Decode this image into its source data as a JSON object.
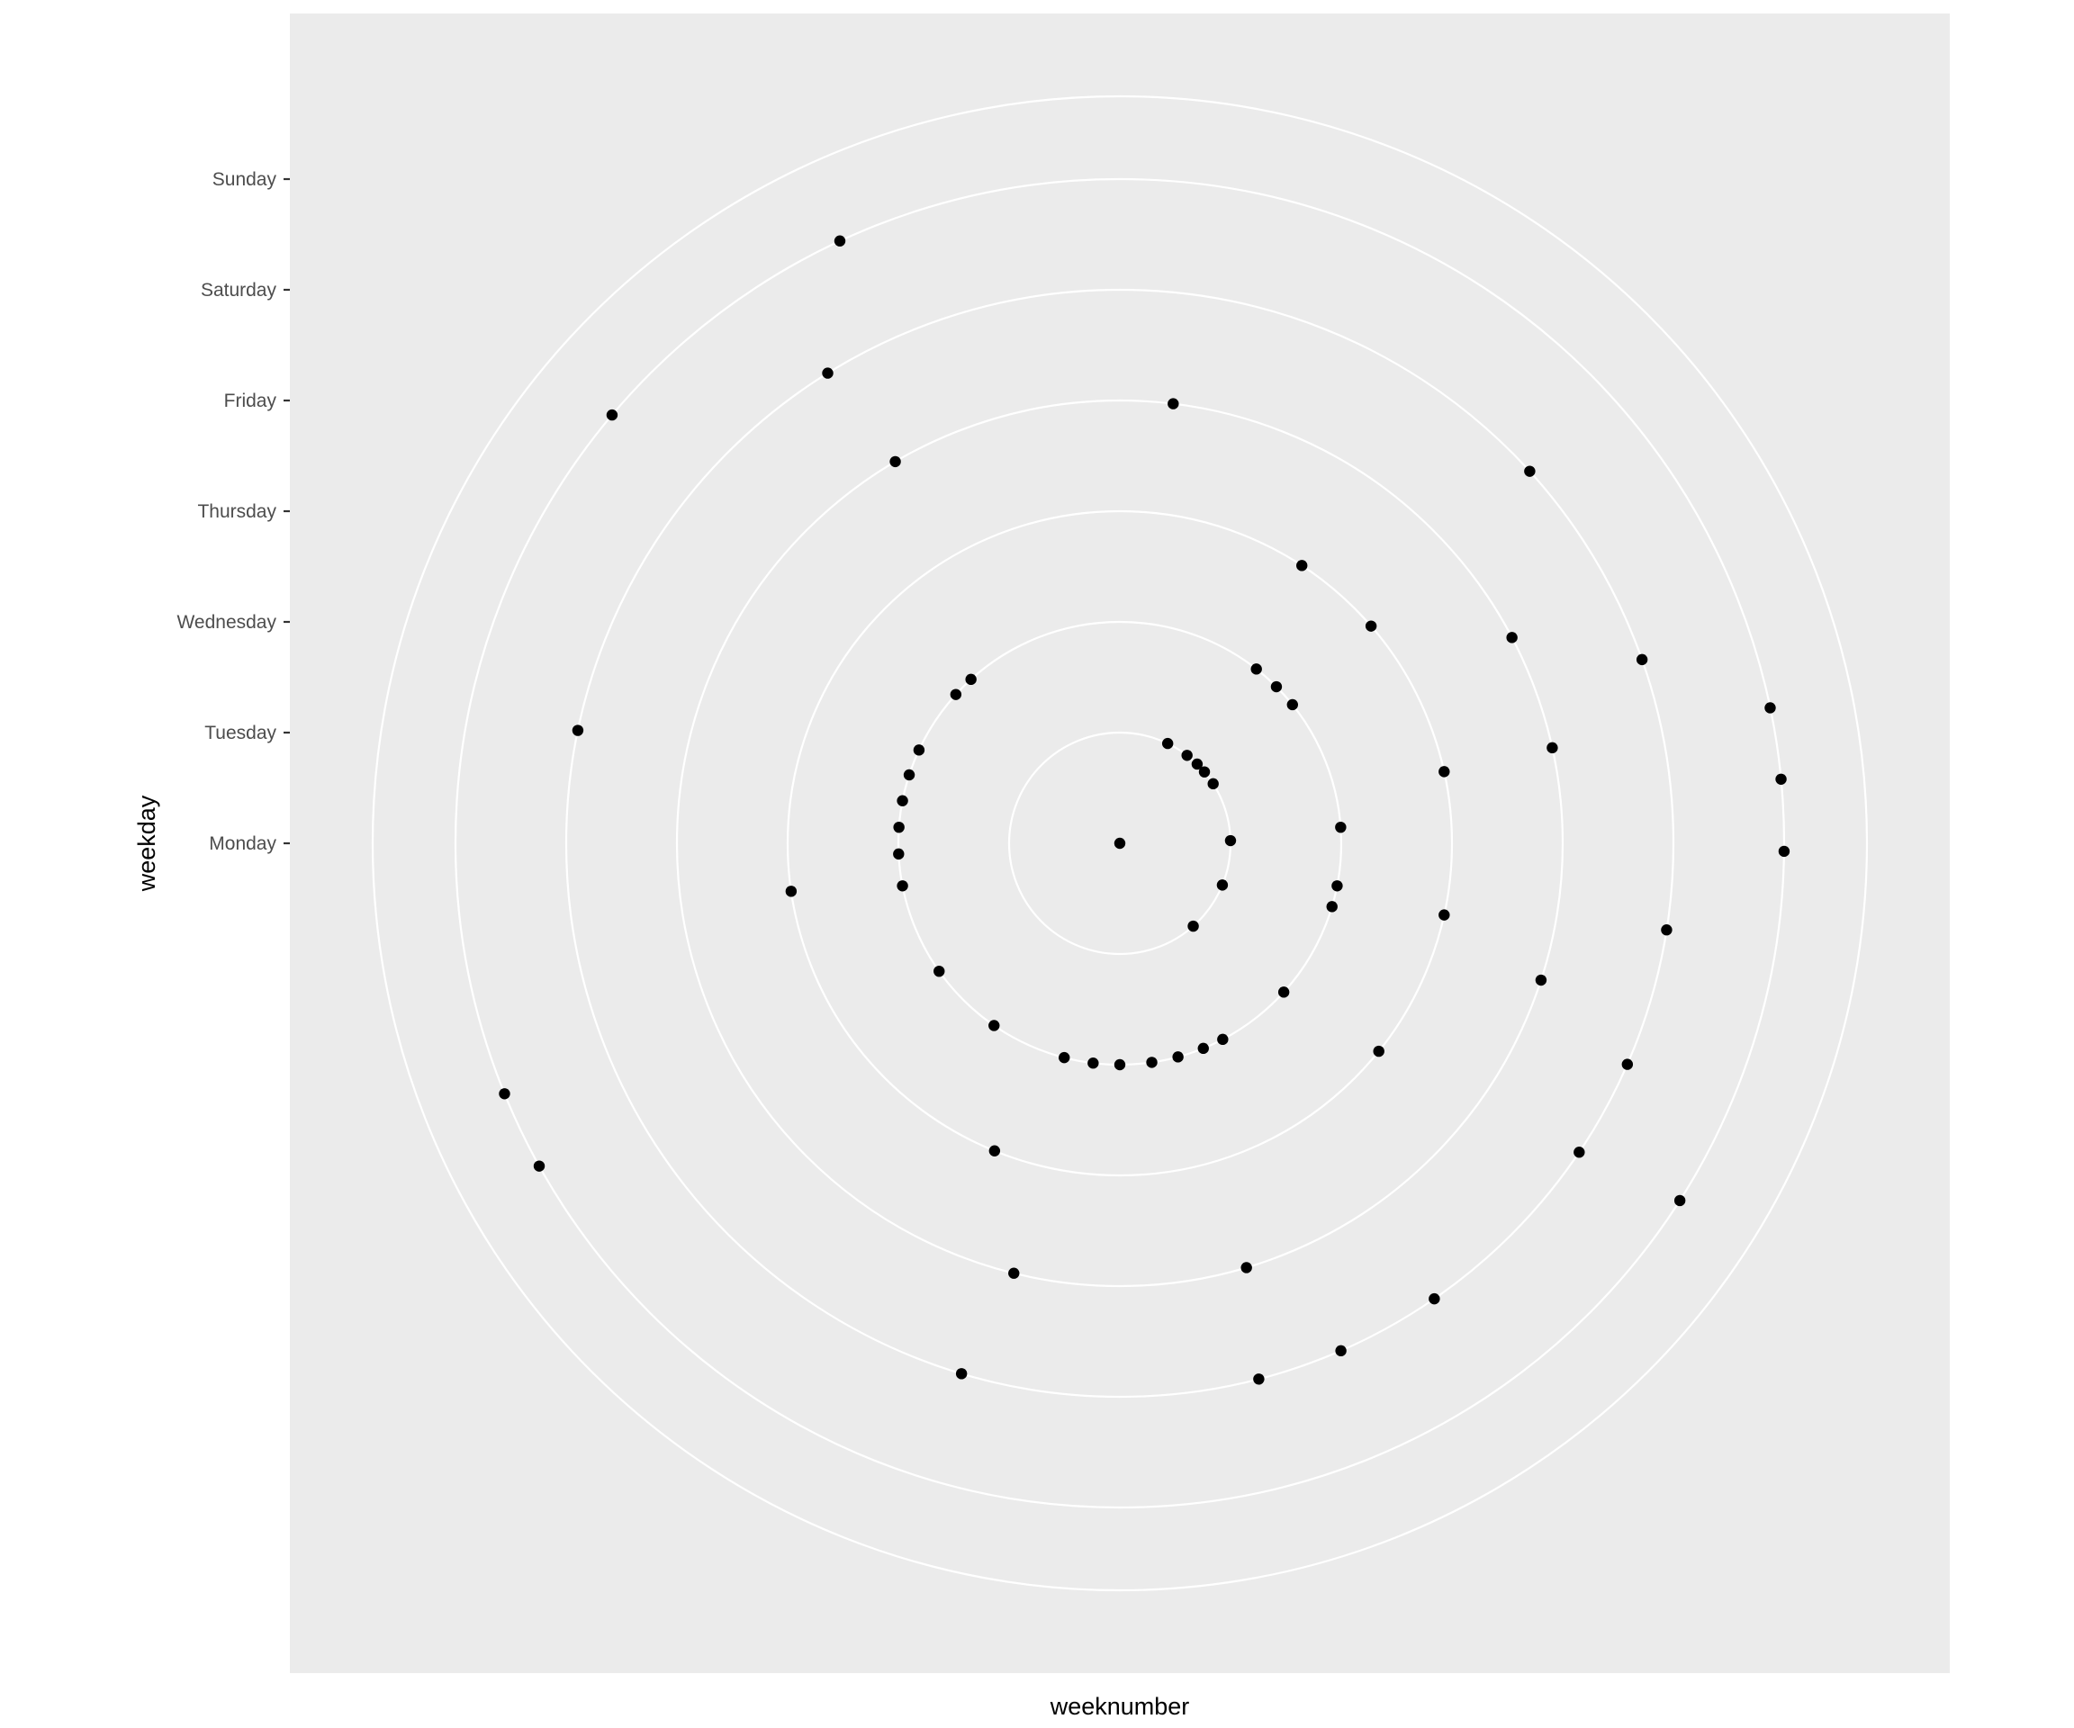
{
  "chart_data": {
    "type": "scatter",
    "coord": "polar",
    "theta_axis": "weeknumber",
    "radius_axis": "weekday",
    "xlabel": "weeknumber",
    "ylabel": "weekday",
    "ytick_labels": [
      "Monday",
      "Tuesday",
      "Wednesday",
      "Thursday",
      "Friday",
      "Saturday",
      "Sunday"
    ],
    "theta_range": [
      0,
      52
    ],
    "grid": true,
    "legend": "none",
    "panel_background": "#ebebeb",
    "grid_color": "#ffffff",
    "point_color": "#000000",
    "points": [
      {
        "weekday": "Monday",
        "weeknumber": 0
      },
      {
        "weekday": "Tuesday",
        "weeknumber": 3.7
      },
      {
        "weekday": "Tuesday",
        "weeknumber": 5.4
      },
      {
        "weekday": "Tuesday",
        "weeknumber": 6.4
      },
      {
        "weekday": "Tuesday",
        "weeknumber": 7.2
      },
      {
        "weekday": "Tuesday",
        "weeknumber": 8.3
      },
      {
        "weekday": "Tuesday",
        "weeknumber": 12.8
      },
      {
        "weekday": "Tuesday",
        "weeknumber": 16.2
      },
      {
        "weekday": "Tuesday",
        "weeknumber": 20.0
      },
      {
        "weekday": "Wednesday",
        "weeknumber": 5.5
      },
      {
        "weekday": "Wednesday",
        "weeknumber": 6.5
      },
      {
        "weekday": "Wednesday",
        "weeknumber": 7.4
      },
      {
        "weekday": "Wednesday",
        "weeknumber": 12.4
      },
      {
        "weekday": "Wednesday",
        "weeknumber": 14.6
      },
      {
        "weekday": "Wednesday",
        "weeknumber": 15.4
      },
      {
        "weekday": "Wednesday",
        "weeknumber": 19.1
      },
      {
        "weekday": "Wednesday",
        "weeknumber": 22.0
      },
      {
        "weekday": "Wednesday",
        "weeknumber": 22.8
      },
      {
        "weekday": "Wednesday",
        "weeknumber": 23.8
      },
      {
        "weekday": "Wednesday",
        "weeknumber": 24.8
      },
      {
        "weekday": "Wednesday",
        "weeknumber": 26.0
      },
      {
        "weekday": "Wednesday",
        "weeknumber": 27.0
      },
      {
        "weekday": "Wednesday",
        "weeknumber": 28.1
      },
      {
        "weekday": "Wednesday",
        "weeknumber": 31.0
      },
      {
        "weekday": "Wednesday",
        "weeknumber": 33.9
      },
      {
        "weekday": "Wednesday",
        "weeknumber": 37.4
      },
      {
        "weekday": "Wednesday",
        "weeknumber": 38.6
      },
      {
        "weekday": "Wednesday",
        "weeknumber": 39.6
      },
      {
        "weekday": "Wednesday",
        "weeknumber": 40.6
      },
      {
        "weekday": "Wednesday",
        "weeknumber": 41.6
      },
      {
        "weekday": "Wednesday",
        "weeknumber": 42.6
      },
      {
        "weekday": "Wednesday",
        "weeknumber": 45.1
      },
      {
        "weekday": "Wednesday",
        "weeknumber": 45.9
      },
      {
        "weekday": "Thursday",
        "weeknumber": 4.8
      },
      {
        "weekday": "Thursday",
        "weeknumber": 7.1
      },
      {
        "weekday": "Thursday",
        "weeknumber": 11.2
      },
      {
        "weekday": "Thursday",
        "weeknumber": 14.8
      },
      {
        "weekday": "Thursday",
        "weeknumber": 18.6
      },
      {
        "weekday": "Thursday",
        "weeknumber": 29.2
      },
      {
        "weekday": "Thursday",
        "weeknumber": 37.8
      },
      {
        "weekday": "Friday",
        "weeknumber": 1.0
      },
      {
        "weekday": "Friday",
        "weeknumber": 9.0
      },
      {
        "weekday": "Friday",
        "weeknumber": 11.2
      },
      {
        "weekday": "Friday",
        "weeknumber": 15.6
      },
      {
        "weekday": "Friday",
        "weeknumber": 23.6
      },
      {
        "weekday": "Friday",
        "weeknumber": 28.0
      },
      {
        "weekday": "Friday",
        "weeknumber": 47.6
      },
      {
        "weekday": "Saturday",
        "weeknumber": 6.9
      },
      {
        "weekday": "Saturday",
        "weeknumber": 10.2
      },
      {
        "weekday": "Saturday",
        "weeknumber": 14.3
      },
      {
        "weekday": "Saturday",
        "weeknumber": 16.4
      },
      {
        "weekday": "Saturday",
        "weeknumber": 17.9
      },
      {
        "weekday": "Saturday",
        "weeknumber": 21.0
      },
      {
        "weekday": "Saturday",
        "weeknumber": 22.6
      },
      {
        "weekday": "Saturday",
        "weeknumber": 23.9
      },
      {
        "weekday": "Saturday",
        "weeknumber": 28.4
      },
      {
        "weekday": "Saturday",
        "weeknumber": 40.7
      },
      {
        "weekday": "Saturday",
        "weeknumber": 47.4
      },
      {
        "weekday": "Sunday",
        "weeknumber": 11.3
      },
      {
        "weekday": "Sunday",
        "weeknumber": 12.2
      },
      {
        "weekday": "Sunday",
        "weeknumber": 13.1
      },
      {
        "weekday": "Sunday",
        "weeknumber": 17.7
      },
      {
        "weekday": "Sunday",
        "weeknumber": 34.8
      },
      {
        "weekday": "Sunday",
        "weeknumber": 35.8
      },
      {
        "weekday": "Sunday",
        "weeknumber": 44.8
      },
      {
        "weekday": "Sunday",
        "weeknumber": 48.4
      }
    ]
  }
}
